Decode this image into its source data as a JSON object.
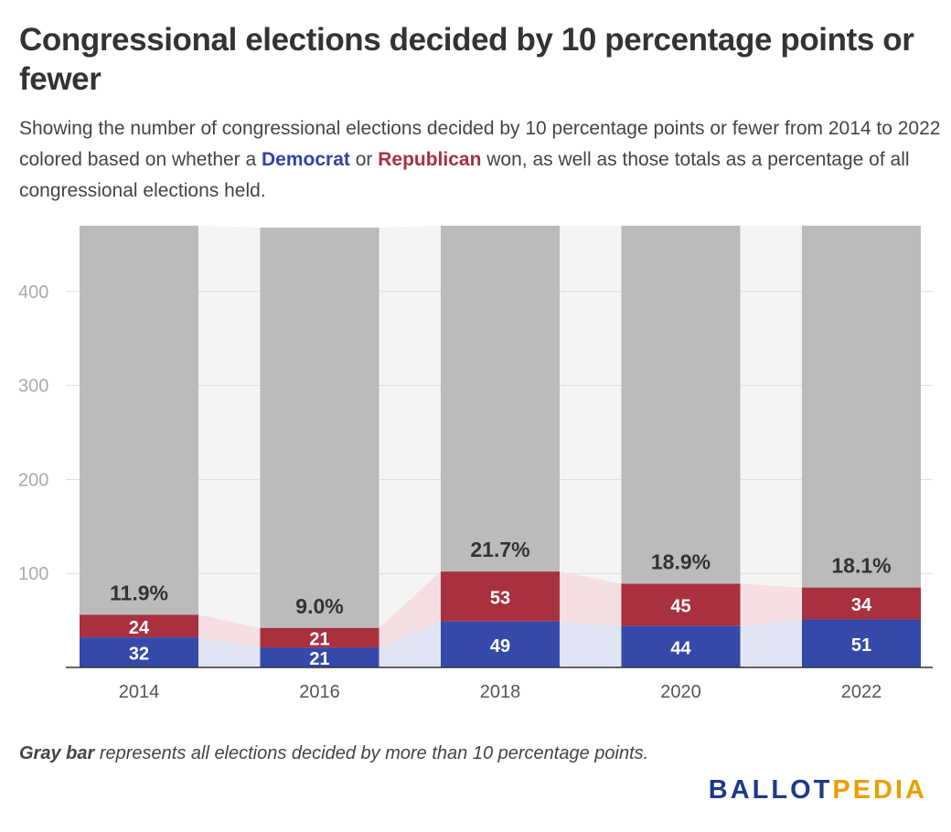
{
  "title": "Congressional elections decided by 10 percentage points or fewer",
  "subtitle": {
    "part1": "Showing the number of congressional elections decided by 10 percentage points or fewer from 2014 to 2022 colored based on whether a ",
    "democrat": "Democrat",
    "or": " or ",
    "republican": "Republican",
    "part2": " won, as well as those totals as a percentage of all congressional elections held."
  },
  "footnote": {
    "bold": "Gray bar",
    "rest": " represents all elections decided by more than 10 percentage points."
  },
  "logo": {
    "part1": "BALLOT",
    "part2": "PEDIA"
  },
  "colors": {
    "democrat": "#3449aa",
    "republican": "#a8303f",
    "other": "#bbbbbb",
    "democrat_band": "#e1e4f3",
    "republican_band": "#f5dfe2",
    "background_band": "#f4f4f4",
    "gridline": "#dddddd"
  },
  "chart_data": {
    "type": "bar",
    "stacked": true,
    "categories": [
      "2014",
      "2016",
      "2018",
      "2020",
      "2022"
    ],
    "series": [
      {
        "name": "Democrat",
        "values": [
          32,
          21,
          49,
          44,
          51
        ]
      },
      {
        "name": "Republican",
        "values": [
          24,
          21,
          53,
          45,
          34
        ]
      },
      {
        "name": "Gray bar",
        "values": [
          414,
          426,
          368,
          381,
          385
        ]
      }
    ],
    "percent_labels": [
      "11.9%",
      "9.0%",
      "21.7%",
      "18.9%",
      "18.1%"
    ],
    "yticks": [
      100,
      200,
      300,
      400
    ],
    "ylim": [
      0,
      470
    ],
    "grid": true,
    "xlabel": "",
    "ylabel": ""
  }
}
